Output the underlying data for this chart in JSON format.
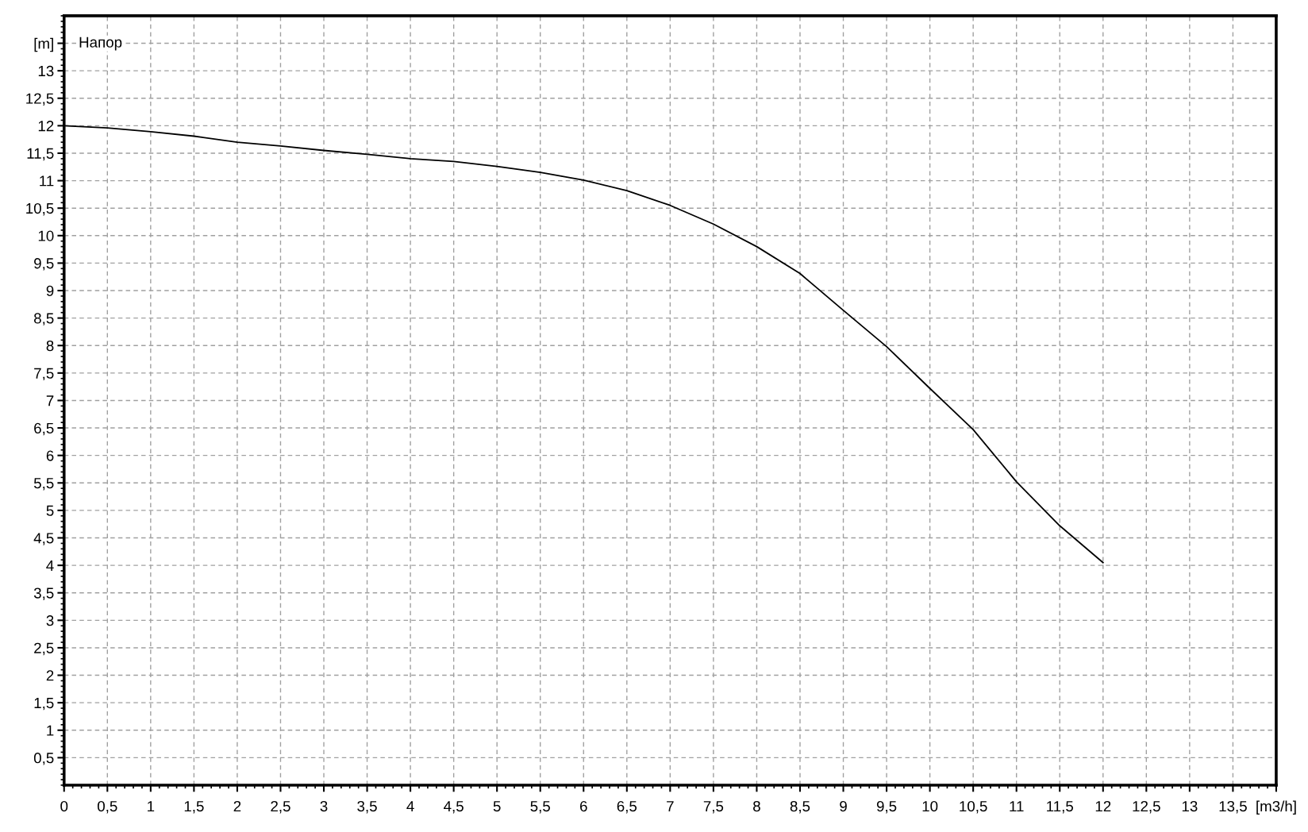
{
  "chart_data": {
    "type": "line",
    "ylabel": "Напор",
    "x": [
      0,
      0.5,
      1,
      1.5,
      2,
      2.5,
      3,
      3.5,
      4,
      4.5,
      5,
      5.5,
      6,
      6.5,
      7,
      7.5,
      8,
      8.5,
      9,
      9.5,
      10,
      10.5,
      11,
      11.5,
      12
    ],
    "series": [
      {
        "color": "#000000",
        "values": [
          12.0,
          11.96,
          11.89,
          11.81,
          11.7,
          11.63,
          11.55,
          11.48,
          11.4,
          11.35,
          11.26,
          11.15,
          11.01,
          10.82,
          10.55,
          10.21,
          9.8,
          9.31,
          8.64,
          7.98,
          7.22,
          6.47,
          5.52,
          4.72,
          4.05
        ]
      }
    ],
    "xlim": [
      0,
      14
    ],
    "ylim": [
      0,
      14
    ],
    "xticks": [
      0,
      {
        "value": 0.5,
        "label": "0,5"
      },
      1,
      {
        "value": 1.5,
        "label": "1,5"
      },
      2,
      {
        "value": 2.5,
        "label": "2,5"
      },
      3,
      {
        "value": 3.5,
        "label": "3,5"
      },
      4,
      {
        "value": 4.5,
        "label": "4,5"
      },
      5,
      {
        "value": 5.5,
        "label": "5,5"
      },
      6,
      {
        "value": 6.5,
        "label": "6,5"
      },
      7,
      {
        "value": 7.5,
        "label": "7,5"
      },
      8,
      {
        "value": 8.5,
        "label": "8,5"
      },
      9,
      {
        "value": 9.5,
        "label": "9,5"
      },
      10,
      {
        "value": 10.5,
        "label": "10,5"
      },
      11,
      {
        "value": 11.5,
        "label": "11,5"
      },
      12,
      {
        "value": 12.5,
        "label": "12,5"
      },
      13,
      {
        "value": 13.5,
        "label": "13,5"
      },
      {
        "value": 14,
        "label": "[m3/h]"
      }
    ],
    "yticks": [
      {
        "value": 0.5,
        "label": "0,5"
      },
      1,
      {
        "value": 1.5,
        "label": "1,5"
      },
      2,
      {
        "value": 2.5,
        "label": "2,5"
      },
      3,
      {
        "value": 3.5,
        "label": "3,5"
      },
      4,
      {
        "value": 4.5,
        "label": "4,5"
      },
      5,
      {
        "value": 5.5,
        "label": "5,5"
      },
      6,
      {
        "value": 6.5,
        "label": "6,5"
      },
      7,
      {
        "value": 7.5,
        "label": "7,5"
      },
      8,
      {
        "value": 8.5,
        "label": "8,5"
      },
      9,
      {
        "value": 9.5,
        "label": "9,5"
      },
      10,
      {
        "value": 10.5,
        "label": "10,5"
      },
      11,
      {
        "value": 11.5,
        "label": "11,5"
      },
      12,
      {
        "value": 12.5,
        "label": "12,5"
      },
      13,
      {
        "value": 13.5,
        "label": "[m]"
      }
    ],
    "grid": true,
    "line_style": "solid"
  }
}
